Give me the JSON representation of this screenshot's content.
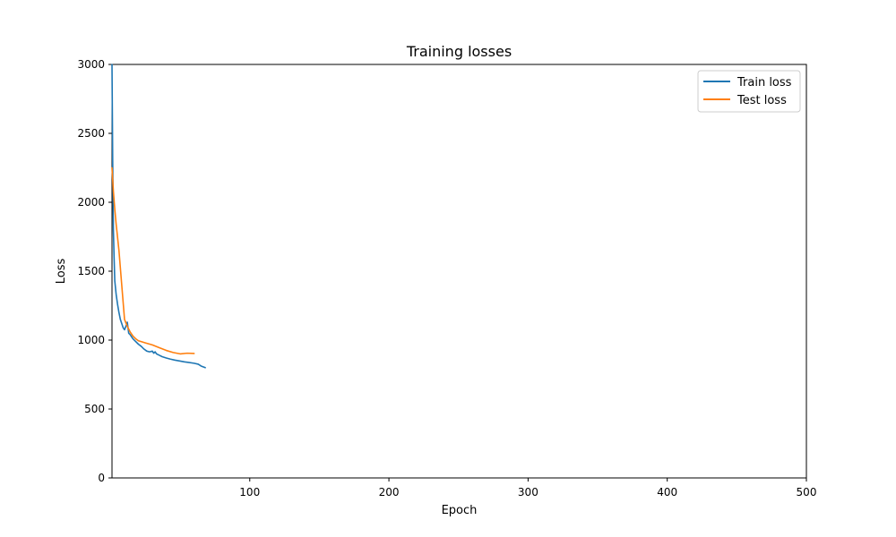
{
  "chart_data": {
    "type": "line",
    "title": "Training losses",
    "xlabel": "Epoch",
    "ylabel": "Loss",
    "xlim": [
      1,
      500
    ],
    "ylim": [
      0,
      3000
    ],
    "xticks": [
      100,
      200,
      300,
      400,
      500
    ],
    "yticks": [
      0,
      500,
      1000,
      1500,
      2000,
      2500,
      3000
    ],
    "legend_position": "top-right",
    "series": [
      {
        "name": "Train loss",
        "color": "#1f77b4",
        "x": [
          1,
          1.5,
          2,
          2.5,
          3,
          4,
          5,
          6,
          7,
          8,
          9,
          10,
          11,
          12,
          13,
          14,
          15,
          16,
          18,
          20,
          22,
          24,
          26,
          28,
          30,
          31,
          32,
          33,
          35,
          37,
          40,
          43,
          46,
          50,
          53,
          56,
          60,
          63,
          65,
          68
        ],
        "y": [
          3000,
          2300,
          1800,
          1600,
          1430,
          1330,
          1260,
          1200,
          1150,
          1120,
          1090,
          1075,
          1100,
          1130,
          1050,
          1040,
          1025,
          1010,
          990,
          970,
          955,
          935,
          920,
          915,
          920,
          905,
          915,
          900,
          890,
          880,
          870,
          862,
          855,
          848,
          842,
          838,
          832,
          825,
          812,
          800
        ]
      },
      {
        "name": "Test loss",
        "color": "#ff7f0e",
        "x": [
          1,
          2,
          3,
          4,
          6,
          8,
          10,
          12,
          14,
          16,
          18,
          20,
          25,
          30,
          35,
          40,
          45,
          50,
          55,
          60
        ],
        "y": [
          2250,
          2080,
          1950,
          1840,
          1650,
          1400,
          1150,
          1100,
          1060,
          1030,
          1010,
          995,
          980,
          965,
          945,
          925,
          910,
          900,
          905,
          903
        ]
      }
    ]
  }
}
